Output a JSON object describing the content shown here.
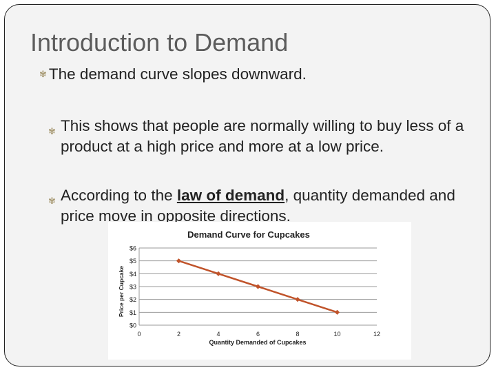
{
  "slide": {
    "title": "Introduction to Demand",
    "bullet1": "The demand curve slopes downward.",
    "sub1": "This shows that people are normally willing to buy less of a product at a high price and more at a low price.",
    "sub2_before": "According to the ",
    "sub2_term": "law of demand",
    "sub2_after": ", quantity demanded and price move in opposite directions."
  },
  "chart_data": {
    "type": "line",
    "title": "Demand Curve for Cupcakes",
    "xlabel": "Quantity Demanded of Cupcakes",
    "ylabel": "Price per Cupcake",
    "x_ticks": [
      "0",
      "2",
      "4",
      "6",
      "8",
      "10",
      "12"
    ],
    "y_ticks": [
      "$0",
      "$1",
      "$2",
      "$3",
      "$4",
      "$5",
      "$6"
    ],
    "xlim": [
      0,
      12
    ],
    "ylim": [
      0,
      6
    ],
    "grid": true,
    "series": [
      {
        "x": [
          2,
          4,
          6,
          8,
          10
        ],
        "y": [
          5,
          4,
          3,
          2,
          1
        ],
        "color": "#c0532a"
      }
    ]
  }
}
